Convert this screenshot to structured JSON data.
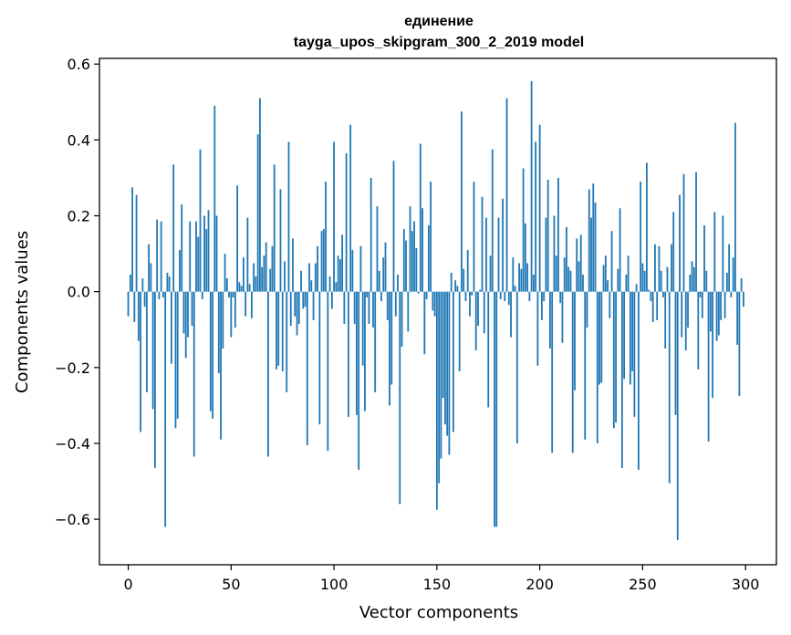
{
  "chart_data": {
    "type": "bar",
    "title": "единение",
    "subtitle": "tayga_upos_skipgram_300_2_2019 model",
    "xlabel": "Vector components",
    "ylabel": "Components values",
    "xlim": [
      -14,
      315
    ],
    "ylim": [
      -0.72,
      0.615
    ],
    "xticks": [
      0,
      50,
      100,
      150,
      200,
      250,
      300
    ],
    "xtick_labels": [
      "0",
      "50",
      "100",
      "150",
      "200",
      "250",
      "300"
    ],
    "yticks": [
      -0.6,
      -0.4,
      -0.2,
      0.0,
      0.2,
      0.4,
      0.6
    ],
    "ytick_labels": [
      "−0.6",
      "−0.4",
      "−0.2",
      "0.0",
      "0.2",
      "0.4",
      "0.6"
    ],
    "grid": false,
    "color": "#1f77b4",
    "values": [
      -0.065,
      0.045,
      0.275,
      -0.08,
      0.255,
      -0.13,
      -0.37,
      0.035,
      -0.04,
      -0.265,
      0.125,
      0.075,
      -0.31,
      -0.465,
      0.19,
      -0.02,
      0.185,
      -0.015,
      -0.62,
      0.05,
      0.04,
      -0.19,
      0.335,
      -0.36,
      -0.335,
      0.11,
      0.23,
      -0.11,
      -0.175,
      -0.12,
      0.185,
      -0.09,
      -0.435,
      0.185,
      0.145,
      0.375,
      -0.02,
      0.2,
      0.165,
      0.215,
      -0.315,
      -0.335,
      0.49,
      0.2,
      -0.215,
      -0.39,
      -0.15,
      0.1,
      0.035,
      -0.015,
      -0.12,
      -0.015,
      -0.095,
      0.28,
      0.025,
      0.015,
      0.09,
      -0.065,
      0.195,
      0.02,
      -0.07,
      0.075,
      0.04,
      0.415,
      0.51,
      0.065,
      0.095,
      0.13,
      -0.435,
      0.06,
      0.12,
      0.335,
      -0.205,
      -0.195,
      0.27,
      -0.21,
      0.08,
      -0.265,
      0.395,
      -0.09,
      0.14,
      -0.065,
      -0.115,
      -0.085,
      0.055,
      -0.045,
      -0.04,
      -0.405,
      0.075,
      0.03,
      -0.075,
      0.075,
      0.12,
      -0.35,
      0.16,
      0.165,
      0.29,
      -0.42,
      0.04,
      -0.045,
      0.395,
      0.025,
      0.095,
      0.085,
      0.15,
      -0.085,
      0.365,
      -0.33,
      0.44,
      0.11,
      -0.085,
      -0.325,
      -0.47,
      0.12,
      -0.195,
      -0.315,
      -0.015,
      -0.085,
      0.3,
      -0.095,
      -0.265,
      0.225,
      0.055,
      -0.025,
      0.09,
      0.13,
      -0.075,
      -0.3,
      -0.245,
      0.345,
      -0.065,
      0.045,
      -0.56,
      -0.145,
      0.165,
      0.135,
      -0.105,
      0.225,
      0.16,
      0.185,
      0.115,
      -0.005,
      0.39,
      0.22,
      -0.165,
      -0.02,
      0.175,
      0.29,
      -0.05,
      -0.065,
      -0.575,
      -0.505,
      -0.44,
      -0.28,
      -0.35,
      -0.38,
      -0.43,
      0.05,
      -0.37,
      0.03,
      0.015,
      -0.21,
      0.475,
      0.06,
      -0.025,
      0.11,
      -0.065,
      -0.01,
      0.29,
      -0.155,
      -0.09,
      0.005,
      0.25,
      -0.11,
      0.195,
      -0.305,
      0.095,
      0.375,
      -0.62,
      -0.62,
      0.195,
      -0.02,
      0.245,
      -0.025,
      0.51,
      -0.035,
      -0.12,
      0.09,
      0.015,
      -0.4,
      0.075,
      0.06,
      0.325,
      0.18,
      0.075,
      -0.025,
      0.555,
      0.045,
      0.395,
      -0.195,
      0.44,
      -0.075,
      -0.025,
      0.195,
      0.295,
      -0.15,
      -0.425,
      0.2,
      0.095,
      0.3,
      -0.03,
      -0.135,
      0.09,
      0.17,
      0.065,
      0.055,
      -0.425,
      -0.26,
      0.14,
      0.08,
      0.15,
      0.045,
      -0.39,
      -0.095,
      0.27,
      0.195,
      0.285,
      0.235,
      -0.4,
      -0.245,
      -0.24,
      0.07,
      0.095,
      0.03,
      -0.07,
      0.16,
      -0.36,
      -0.345,
      0.06,
      0.22,
      -0.465,
      -0.23,
      0.045,
      0.095,
      -0.245,
      -0.21,
      -0.33,
      0.02,
      -0.47,
      0.29,
      0.075,
      0.055,
      0.34,
      0.005,
      -0.025,
      -0.08,
      0.125,
      -0.075,
      0.12,
      0.055,
      -0.015,
      -0.15,
      0.065,
      -0.505,
      0.125,
      0.21,
      -0.325,
      -0.655,
      0.255,
      -0.12,
      0.31,
      -0.155,
      -0.095,
      0.045,
      0.08,
      0.065,
      0.315,
      -0.205,
      -0.015,
      -0.07,
      0.175,
      0.055,
      -0.395,
      -0.105,
      -0.28,
      0.21,
      -0.13,
      -0.115,
      -0.075,
      0.2,
      -0.07,
      0.05,
      0.125,
      -0.015,
      0.09,
      0.445,
      -0.14,
      -0.275,
      0.035,
      -0.04
    ]
  }
}
